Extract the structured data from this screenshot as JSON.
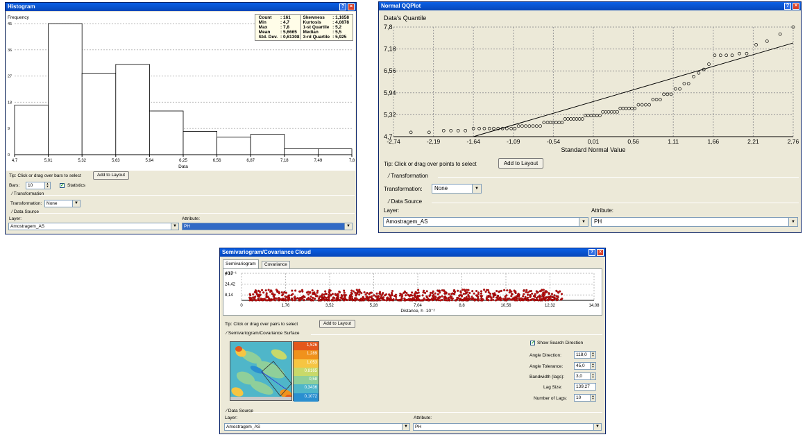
{
  "histogram": {
    "title": "Histogram",
    "y_label": "Frequency",
    "x_label": "Data",
    "stats": [
      {
        "k1": "Count",
        "v1": ": 161",
        "k2": "Skewness",
        "v2": ": 1,1658"
      },
      {
        "k1": "Min",
        "v1": ": 4,7",
        "k2": "Kurtosis",
        "v2": ": 4,0878"
      },
      {
        "k1": "Max",
        "v1": ": 7,8",
        "k2": "1-st Quartile",
        "v2": ": 5,2"
      },
      {
        "k1": "Mean",
        "v1": ": 5,6665",
        "k2": "Median",
        "v2": ": 5,5"
      },
      {
        "k1": "Std. Dev.",
        "v1": ": 0,61308",
        "k2": "3-rd Quartile",
        "v2": ": 5,925"
      }
    ],
    "tip": "Tip:   Click or drag over bars to select",
    "add_to_layout": "Add to Layout",
    "bars_label": "Bars:",
    "bars_value": "10",
    "statistics_label": "Statistics",
    "transformation_group": "Transformation",
    "transformation_label": "Transformation:",
    "transformation_value": "None",
    "data_source_group": "Data Source",
    "layer_label": "Layer:",
    "layer_value": "Amostragem_AS",
    "attribute_label": "Attribute:",
    "attribute_value": "PH"
  },
  "qqplot": {
    "title": "Normal QQPlot",
    "y_label": "Data's Quantile",
    "x_label": "Standard Normal Value",
    "tip": "Tip:   Click or drag over points to select",
    "add_to_layout": "Add to Layout",
    "transformation_group": "Transformation",
    "transformation_label": "Transformation:",
    "transformation_value": "None",
    "data_source_group": "Data Source",
    "layer_label": "Layer:",
    "layer_value": "Amostragem_AS",
    "attribute_label": "Attribute:",
    "attribute_value": "PH"
  },
  "semivariogram": {
    "title": "Semivariogram/Covariance Cloud",
    "tab_semivariogram": "Semivariogram",
    "tab_covariance": "Covariance",
    "y_axis_note": "γ·10⁻¹",
    "x_label": "Distance, h ·10⁻²",
    "tip": "Tip:   Click or drag over pairs to select",
    "add_to_layout": "Add to Layout",
    "surface_group": "Semivariogram/Covariance Surface",
    "legend_values": [
      "1,526",
      "1,289",
      "1,053",
      "0,8165",
      "0,58",
      "0,3436",
      "0,1072"
    ],
    "legend_colors": [
      "#e4571c",
      "#f0921c",
      "#f6c542",
      "#c8d96a",
      "#8fcf9a",
      "#4fb6c9",
      "#2a8fd0"
    ],
    "show_search_direction": "Show Search Direction",
    "angle_direction_label": "Angle Direction:",
    "angle_direction_value": "118,0",
    "angle_tolerance_label": "Angle Tolerance:",
    "angle_tolerance_value": "45,0",
    "bandwidth_label": "Bandwidth (lags):",
    "bandwidth_value": "3,0",
    "lag_size_label": "Lag Size:",
    "lag_size_value": "139,27",
    "number_of_lags_label": "Number of Lags:",
    "number_of_lags_value": "10",
    "data_source_group": "Data Source",
    "layer_label": "Layer:",
    "layer_value": "Amostragem_AS",
    "attribute_label": "Attribute:",
    "attribute_value": "PH"
  },
  "chart_data": [
    {
      "type": "bar",
      "title": "Histogram",
      "xlabel": "Data",
      "ylabel": "Frequency",
      "bin_edges": [
        4.7,
        5.01,
        5.32,
        5.63,
        5.94,
        6.25,
        6.56,
        6.87,
        7.18,
        7.49,
        7.8
      ],
      "x_tick_labels": [
        "4,7",
        "5,01",
        "5,32",
        "5,63",
        "5,94",
        "6,25",
        "6,56",
        "6,87",
        "7,18",
        "7,49",
        "7,8"
      ],
      "values": [
        17,
        45,
        28,
        31,
        15,
        8,
        6,
        7,
        2,
        2
      ],
      "y_tick_labels": [
        "0",
        "9",
        "18",
        "27",
        "36",
        "45"
      ],
      "ylim": [
        0,
        45
      ],
      "grid": true
    },
    {
      "type": "scatter",
      "title": "Normal QQPlot",
      "xlabel": "Standard Normal Value",
      "ylabel": "Data's Quantile",
      "xlim": [
        -2.74,
        2.76
      ],
      "ylim": [
        4.7,
        7.8
      ],
      "x_tick_labels": [
        "-2,74",
        "-2,19",
        "-1,64",
        "-1,09",
        "-0,54",
        "0,01",
        "0,56",
        "1,11",
        "1,66",
        "2,21",
        "2,76"
      ],
      "y_tick_labels": [
        "4,7",
        "5,32",
        "5,94",
        "6,56",
        "7,18",
        "7,8"
      ],
      "reference_line": [
        [
          -1.64,
          4.7
        ],
        [
          2.76,
          7.35
        ]
      ],
      "points": [
        [
          -2.5,
          4.82
        ],
        [
          -2.25,
          4.82
        ],
        [
          -2.05,
          4.87
        ],
        [
          -1.95,
          4.87
        ],
        [
          -1.85,
          4.87
        ],
        [
          -1.75,
          4.87
        ],
        [
          -1.64,
          4.93
        ],
        [
          -1.56,
          4.93
        ],
        [
          -1.49,
          4.93
        ],
        [
          -1.42,
          4.93
        ],
        [
          -1.36,
          4.93
        ],
        [
          -1.3,
          4.93
        ],
        [
          -1.24,
          4.93
        ],
        [
          -1.18,
          4.93
        ],
        [
          -1.12,
          4.93
        ],
        [
          -1.07,
          4.93
        ],
        [
          -1.02,
          5.0
        ],
        [
          -0.97,
          5.0
        ],
        [
          -0.92,
          5.0
        ],
        [
          -0.87,
          5.0
        ],
        [
          -0.82,
          5.0
        ],
        [
          -0.77,
          5.0
        ],
        [
          -0.72,
          5.0
        ],
        [
          -0.67,
          5.1
        ],
        [
          -0.62,
          5.1
        ],
        [
          -0.58,
          5.1
        ],
        [
          -0.54,
          5.1
        ],
        [
          -0.5,
          5.1
        ],
        [
          -0.46,
          5.1
        ],
        [
          -0.42,
          5.1
        ],
        [
          -0.38,
          5.2
        ],
        [
          -0.34,
          5.2
        ],
        [
          -0.3,
          5.2
        ],
        [
          -0.26,
          5.2
        ],
        [
          -0.22,
          5.2
        ],
        [
          -0.18,
          5.2
        ],
        [
          -0.14,
          5.2
        ],
        [
          -0.1,
          5.3
        ],
        [
          -0.06,
          5.3
        ],
        [
          -0.02,
          5.3
        ],
        [
          0.02,
          5.3
        ],
        [
          0.06,
          5.3
        ],
        [
          0.1,
          5.3
        ],
        [
          0.14,
          5.4
        ],
        [
          0.18,
          5.4
        ],
        [
          0.22,
          5.4
        ],
        [
          0.26,
          5.4
        ],
        [
          0.3,
          5.4
        ],
        [
          0.34,
          5.4
        ],
        [
          0.38,
          5.5
        ],
        [
          0.42,
          5.5
        ],
        [
          0.46,
          5.5
        ],
        [
          0.5,
          5.5
        ],
        [
          0.54,
          5.5
        ],
        [
          0.58,
          5.5
        ],
        [
          0.63,
          5.6
        ],
        [
          0.68,
          5.6
        ],
        [
          0.73,
          5.6
        ],
        [
          0.78,
          5.6
        ],
        [
          0.83,
          5.75
        ],
        [
          0.88,
          5.75
        ],
        [
          0.93,
          5.75
        ],
        [
          0.98,
          5.9
        ],
        [
          1.03,
          5.9
        ],
        [
          1.08,
          5.9
        ],
        [
          1.14,
          6.05
        ],
        [
          1.2,
          6.05
        ],
        [
          1.26,
          6.2
        ],
        [
          1.32,
          6.2
        ],
        [
          1.39,
          6.4
        ],
        [
          1.46,
          6.5
        ],
        [
          1.53,
          6.6
        ],
        [
          1.6,
          6.75
        ],
        [
          1.68,
          7.0
        ],
        [
          1.76,
          7.0
        ],
        [
          1.84,
          7.0
        ],
        [
          1.92,
          7.0
        ],
        [
          2.02,
          7.05
        ],
        [
          2.12,
          7.05
        ],
        [
          2.25,
          7.3
        ],
        [
          2.4,
          7.4
        ],
        [
          2.58,
          7.6
        ],
        [
          2.76,
          7.8
        ]
      ]
    },
    {
      "type": "scatter",
      "title": "Semivariogram/Covariance Cloud",
      "xlabel": "Distance, h ·10⁻²",
      "ylabel": "γ·10⁻¹",
      "xlim": [
        0,
        14.08
      ],
      "ylim": [
        0,
        40.7
      ],
      "x_tick_labels": [
        "0",
        "1,76",
        "3,52",
        "5,28",
        "7,04",
        "8,8",
        "10,56",
        "12,32",
        "14,08"
      ],
      "y_tick_labels": [
        "8,14",
        "24,42",
        "40,7"
      ],
      "note": "dense cloud of pair points (red), concentrated 0–14 on x and 0–16 on y"
    }
  ]
}
